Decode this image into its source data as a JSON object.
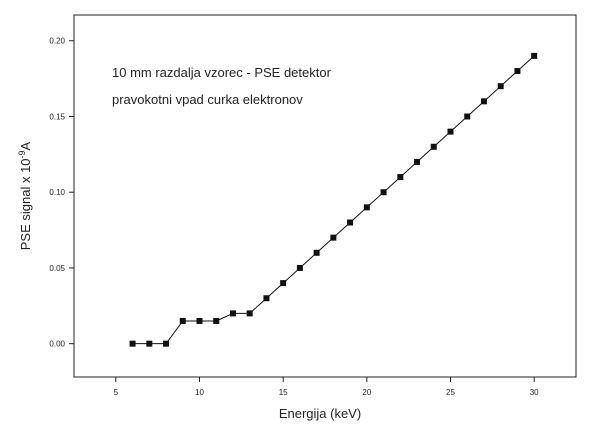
{
  "chart_data": {
    "type": "line",
    "title": "",
    "annotations": [
      "10 mm razdalja vzorec - PSE detektor",
      "pravokotni vpad curka elektronov"
    ],
    "xlabel": "Energija (keV)",
    "ylabel_main": "PSE signal x 10",
    "ylabel_exp": "-9",
    "ylabel_unit": "A",
    "xlim": [
      2.5,
      32.5
    ],
    "ylim": [
      -0.022,
      0.217
    ],
    "xticks": [
      5,
      10,
      15,
      20,
      25,
      30
    ],
    "xtick_labels": [
      "5",
      "10",
      "15",
      "20",
      "25",
      "30"
    ],
    "yticks": [
      0.0,
      0.05,
      0.1,
      0.15,
      0.2
    ],
    "ytick_labels": [
      "0.00",
      "0.05",
      "0.10",
      "0.15",
      "0.20"
    ],
    "grid": false,
    "line_color": "#111111",
    "marker": "square",
    "series": [
      {
        "x": [
          6,
          7,
          8,
          9,
          10,
          11,
          12,
          13,
          14,
          15,
          16,
          17,
          18,
          19,
          20,
          21,
          22,
          23,
          24,
          25,
          26,
          27,
          28,
          29,
          30
        ],
        "values": [
          0.0,
          0.0,
          0.0,
          0.015,
          0.015,
          0.015,
          0.02,
          0.02,
          0.03,
          0.04,
          0.05,
          0.06,
          0.07,
          0.08,
          0.09,
          0.1,
          0.11,
          0.12,
          0.13,
          0.14,
          0.15,
          0.16,
          0.17,
          0.18,
          0.19
        ]
      }
    ]
  }
}
